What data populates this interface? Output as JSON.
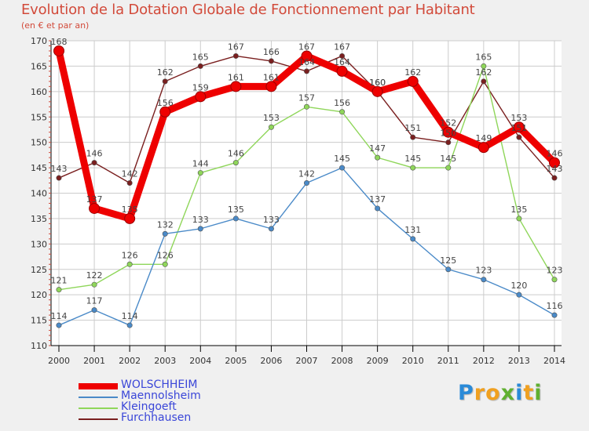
{
  "title": "Evolution de la Dotation Globale de Fonctionnement par Habitant",
  "subtitle": "(en € et par an)",
  "colors": {
    "background": "#f0f0f0",
    "plot_background": "#ffffff",
    "grid": "#cccccc",
    "axis": "#000000",
    "title": "#d24a3a",
    "legend_text": "#3a46d8"
  },
  "chart_data": {
    "type": "line",
    "x": [
      2000,
      2001,
      2002,
      2003,
      2004,
      2005,
      2006,
      2007,
      2008,
      2009,
      2010,
      2011,
      2012,
      2013,
      2014
    ],
    "ylim": [
      110,
      170
    ],
    "yticks": [
      110,
      115,
      120,
      125,
      130,
      135,
      140,
      145,
      150,
      155,
      160,
      165,
      170
    ],
    "grid": true,
    "legend_position": "bottom-left",
    "series": [
      {
        "name": "Furchhausen",
        "color": "#7a1f1f",
        "values": [
          143,
          146,
          142,
          162,
          165,
          167,
          166,
          164,
          167,
          160,
          151,
          150,
          162,
          151,
          143
        ],
        "labels": [
          "143",
          "146",
          "142",
          "162",
          "165",
          "167",
          "166",
          "164",
          "167",
          "160",
          "151",
          "150",
          "162",
          "151",
          "143"
        ]
      },
      {
        "name": "Kleingoeft",
        "color": "#8fd65a",
        "values": [
          121,
          122,
          126,
          126,
          144,
          146,
          153,
          157,
          156,
          147,
          145,
          145,
          165,
          135,
          123
        ],
        "labels": [
          "121",
          "122",
          "126",
          "126",
          "144",
          "146",
          "153",
          "157",
          "156",
          "147",
          "145",
          "145",
          "165",
          "135",
          "123"
        ]
      },
      {
        "name": "Maennolsheim",
        "color": "#4a8ac8",
        "values": [
          114,
          117,
          114,
          132,
          133,
          135,
          133,
          142,
          145,
          137,
          131,
          125,
          123,
          120,
          116
        ],
        "labels": [
          "114",
          "117",
          "114",
          "132",
          "133",
          "135",
          "133",
          "142",
          "145",
          "137",
          "131",
          "125",
          "123",
          "120",
          "116"
        ]
      },
      {
        "name": "WOLSCHHEIM",
        "color": "#ee0000",
        "values": [
          168,
          137,
          135,
          156,
          159,
          161,
          161,
          167,
          164,
          160,
          162,
          152,
          149,
          153,
          146
        ],
        "labels": [
          "168",
          "137",
          "135",
          "156",
          "159",
          "161",
          "161",
          "167",
          "164",
          "160",
          "162",
          "152",
          "149",
          "153",
          "146"
        ]
      }
    ]
  },
  "legend": {
    "items": [
      {
        "label": "WOLSCHHEIM",
        "color": "#ee0000",
        "thickness": 8
      },
      {
        "label": "Maennolsheim",
        "color": "#4a8ac8",
        "thickness": 2
      },
      {
        "label": "Kleingoeft",
        "color": "#8fd65a",
        "thickness": 2
      },
      {
        "label": "Furchhausen",
        "color": "#7a1f1f",
        "thickness": 2
      }
    ]
  },
  "logo": {
    "letters": [
      "P",
      "r",
      "o",
      "x",
      "i",
      "t",
      "i"
    ],
    "colors": [
      "#2a8ad8",
      "#f0a020",
      "#f0a020",
      "#60b030",
      "#2a8ad8",
      "#f0a020",
      "#60b030"
    ]
  }
}
